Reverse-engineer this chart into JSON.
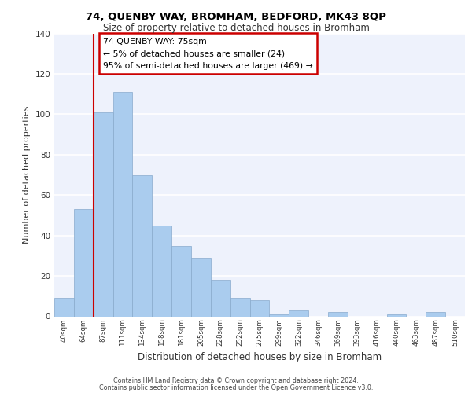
{
  "title1": "74, QUENBY WAY, BROMHAM, BEDFORD, MK43 8QP",
  "title2": "Size of property relative to detached houses in Bromham",
  "xlabel": "Distribution of detached houses by size in Bromham",
  "ylabel": "Number of detached properties",
  "categories": [
    "40sqm",
    "64sqm",
    "87sqm",
    "111sqm",
    "134sqm",
    "158sqm",
    "181sqm",
    "205sqm",
    "228sqm",
    "252sqm",
    "275sqm",
    "299sqm",
    "322sqm",
    "346sqm",
    "369sqm",
    "393sqm",
    "416sqm",
    "440sqm",
    "463sqm",
    "487sqm",
    "510sqm"
  ],
  "values": [
    9,
    53,
    101,
    111,
    70,
    45,
    35,
    29,
    18,
    9,
    8,
    1,
    3,
    0,
    2,
    0,
    0,
    1,
    0,
    2,
    0
  ],
  "bar_color": "#aaccee",
  "bar_edge_color": "#88aacc",
  "annotation_box_text": "74 QUENBY WAY: 75sqm\n← 5% of detached houses are smaller (24)\n95% of semi-detached houses are larger (469) →",
  "annotation_box_color": "#ffffff",
  "annotation_box_edge_color": "#cc0000",
  "vline_x": 1.5,
  "vline_color": "#cc0000",
  "ylim": [
    0,
    140
  ],
  "yticks": [
    0,
    20,
    40,
    60,
    80,
    100,
    120,
    140
  ],
  "footer_line1": "Contains HM Land Registry data © Crown copyright and database right 2024.",
  "footer_line2": "Contains public sector information licensed under the Open Government Licence v3.0.",
  "bg_color": "#eef2fc",
  "grid_color": "#ffffff"
}
